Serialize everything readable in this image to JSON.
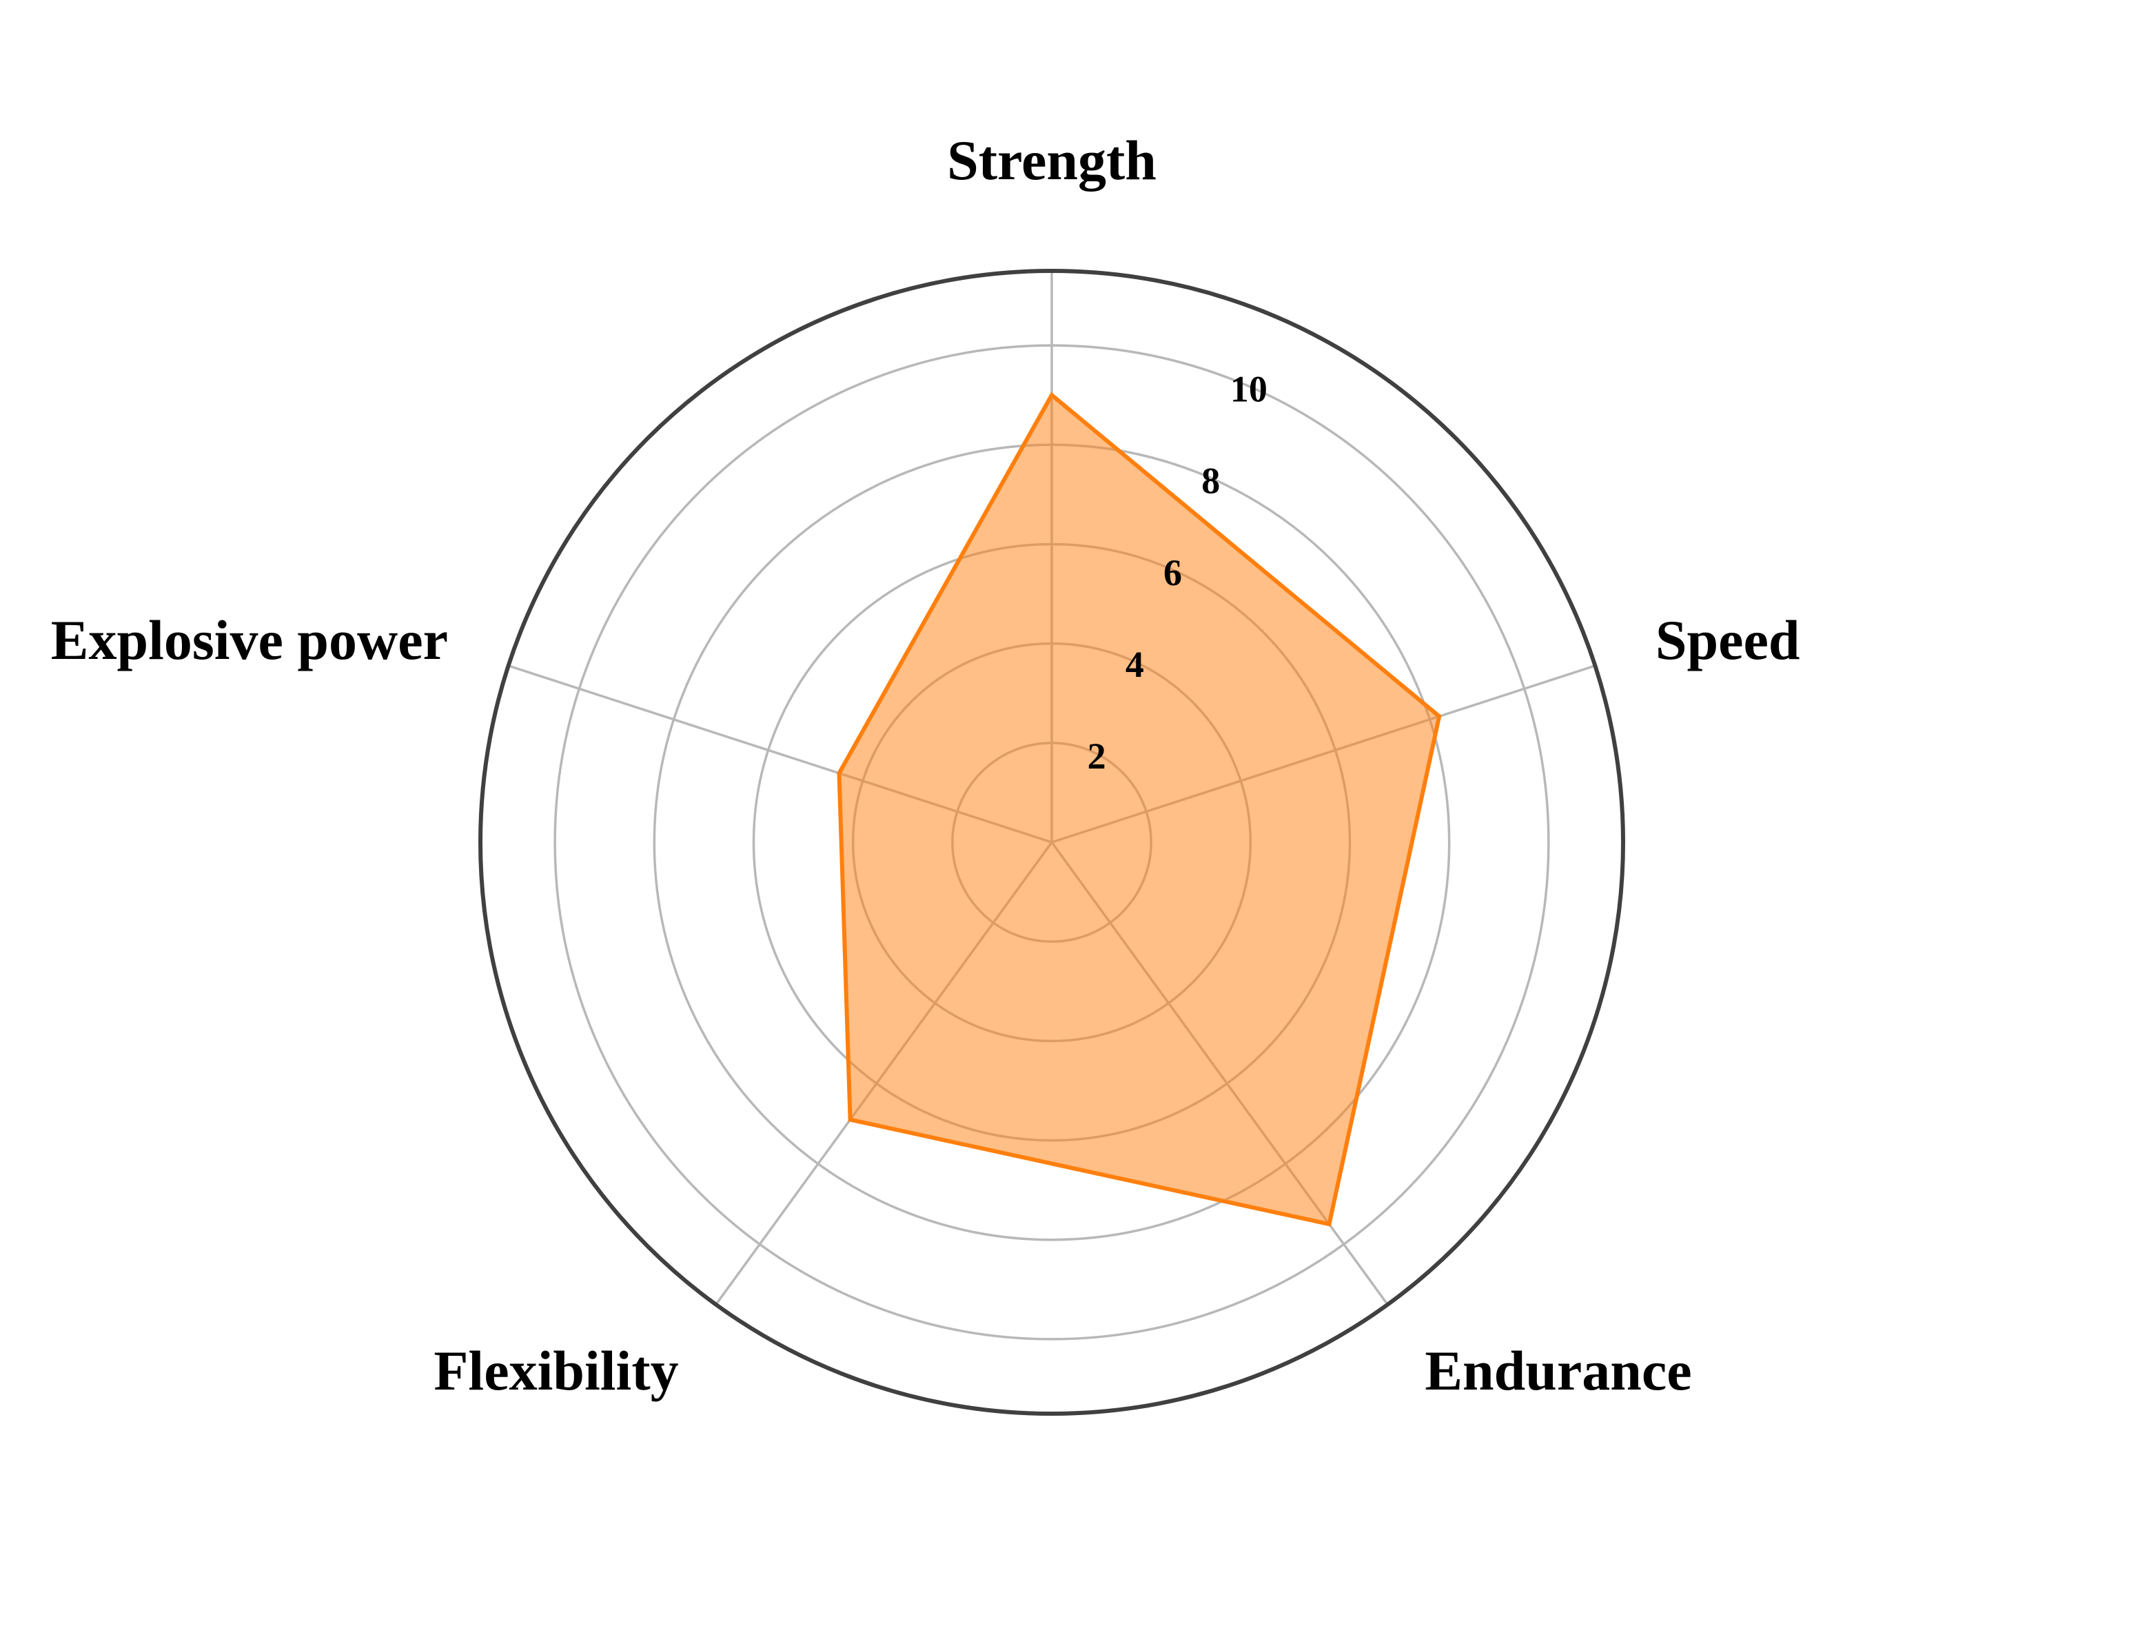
{
  "chart_data": {
    "type": "radar",
    "axes": [
      "Strength",
      "Speed",
      "Endurance",
      "Flexibility",
      "Explosive power"
    ],
    "series": [
      {
        "values": [
          9,
          8.2,
          9.5,
          6.9,
          4.5
        ],
        "color": "#ff7f0e",
        "fill_opacity": 0.5
      }
    ],
    "rlim": [
      0,
      11.5
    ],
    "rticks": [
      2,
      4,
      6,
      8,
      10
    ],
    "rtick_labels": [
      "2",
      "4",
      "6",
      "8",
      "10"
    ],
    "grid": true,
    "start_axis": "top",
    "direction": "clockwise"
  }
}
